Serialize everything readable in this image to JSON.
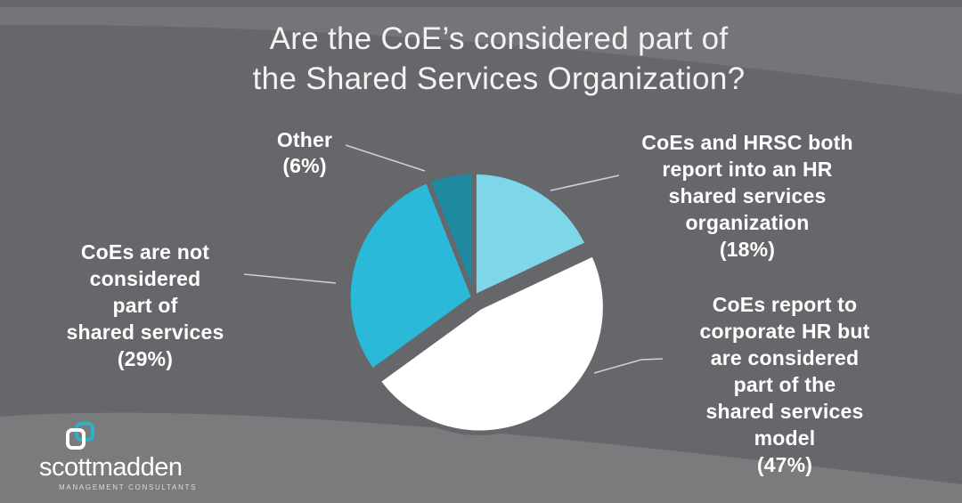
{
  "title": {
    "line1": "Are the CoE’s considered part of",
    "line2": "the Shared Services Organization?"
  },
  "chart_data": {
    "type": "pie",
    "title": "Are the CoE’s considered part of the Shared Services Organization?",
    "unit": "percent",
    "start_angle_deg": 0,
    "direction": "clockwise",
    "legend_position": "callout-labels",
    "slices": [
      {
        "name": "coes-and-hrsc-both-report",
        "label": "CoEs and HRSC both report into an HR shared services organization",
        "value": 18,
        "color": "#7dd7e8",
        "exploded": false
      },
      {
        "name": "coes-report-to-corporate-hr",
        "label": "CoEs report to corporate HR but are considered part of the shared services model",
        "value": 47,
        "color": "#ffffff",
        "exploded": true
      },
      {
        "name": "coes-not-part-of-shared-services",
        "label": "CoEs are not considered part of shared services",
        "value": 29,
        "color": "#2ab9d8",
        "exploded": false
      },
      {
        "name": "other",
        "label": "Other",
        "value": 6,
        "color": "#1f89a0",
        "exploded": false
      }
    ]
  },
  "callouts": {
    "right_top": {
      "lines": [
        "CoEs and HRSC both",
        "report into an HR",
        "shared services",
        "organization",
        "(18%)"
      ]
    },
    "right_bottom": {
      "lines": [
        "CoEs report to",
        "corporate HR but",
        "are considered",
        "part of the",
        "shared services",
        "model",
        "(47%)"
      ]
    },
    "left": {
      "lines": [
        "CoEs are not",
        "considered",
        "part of",
        "shared services",
        "(29%)"
      ]
    },
    "other": {
      "lines": [
        "Other",
        "(6%)"
      ]
    }
  },
  "logo": {
    "brand": "scottmadden",
    "tagline": "MANAGEMENT CONSULTANTS"
  },
  "colors": {
    "background_main": "#66676a",
    "band_top": "#747578",
    "band_bottom": "#7a7b7d",
    "title_text": "#f3f3f4",
    "label_text": "#ffffff",
    "leader_line": "#cfd0d2",
    "slice_gap": "#66676a",
    "logo_teal": "#2eb0c6"
  }
}
